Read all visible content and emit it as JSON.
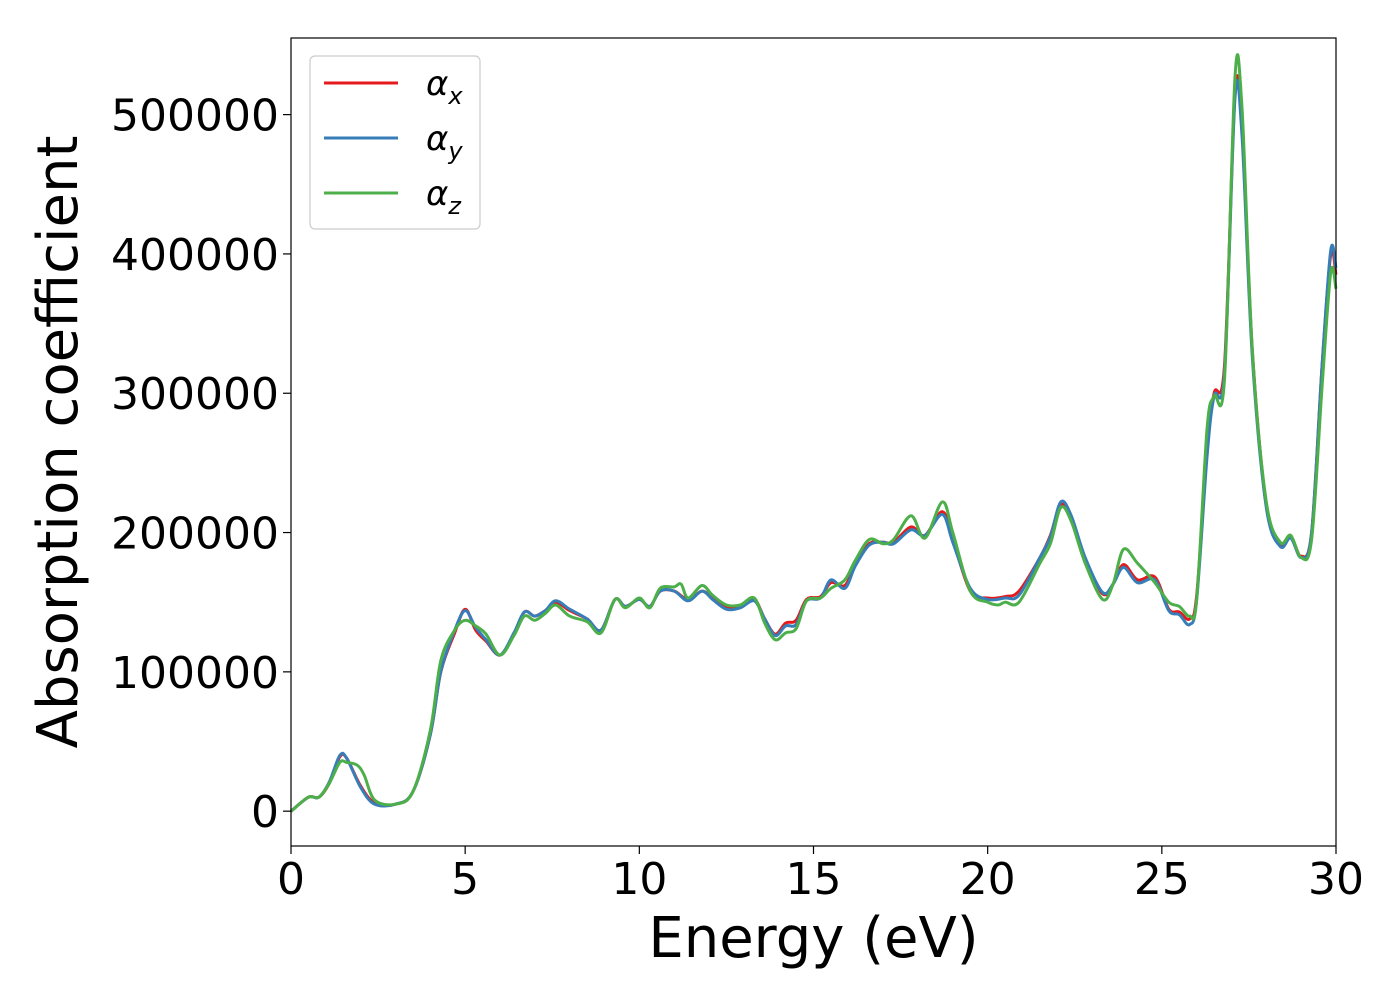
{
  "chart_data": {
    "type": "line",
    "title": "",
    "xlabel": "Energy (eV)",
    "ylabel": "Absorption coefficient",
    "xlim": [
      0,
      30
    ],
    "ylim": [
      -25000,
      555000
    ],
    "xticks": [
      0,
      5,
      10,
      15,
      20,
      25,
      30
    ],
    "yticks": [
      0,
      100000,
      200000,
      300000,
      400000,
      500000
    ],
    "grid": false,
    "legend_position": "top-left",
    "series": [
      {
        "name": "α",
        "sub": "x",
        "color": "#e41a1c",
        "points": [
          [
            0,
            0
          ],
          [
            0.5,
            10000
          ],
          [
            0.8,
            10000
          ],
          [
            1.1,
            20000
          ],
          [
            1.4,
            39000
          ],
          [
            1.6,
            38000
          ],
          [
            2.0,
            18000
          ],
          [
            2.4,
            6000
          ],
          [
            3.0,
            5000
          ],
          [
            3.5,
            14000
          ],
          [
            4.0,
            55000
          ],
          [
            4.3,
            100000
          ],
          [
            4.7,
            128000
          ],
          [
            5.0,
            145000
          ],
          [
            5.3,
            130000
          ],
          [
            5.6,
            122000
          ],
          [
            6.0,
            112000
          ],
          [
            6.4,
            127000
          ],
          [
            6.7,
            143000
          ],
          [
            7.0,
            140000
          ],
          [
            7.3,
            144000
          ],
          [
            7.6,
            150000
          ],
          [
            8.0,
            144000
          ],
          [
            8.5,
            138000
          ],
          [
            8.9,
            130000
          ],
          [
            9.3,
            152000
          ],
          [
            9.6,
            147000
          ],
          [
            10.0,
            152000
          ],
          [
            10.3,
            147000
          ],
          [
            10.6,
            158000
          ],
          [
            11.0,
            158000
          ],
          [
            11.4,
            152000
          ],
          [
            11.8,
            158000
          ],
          [
            12.1,
            153000
          ],
          [
            12.5,
            146000
          ],
          [
            12.9,
            147000
          ],
          [
            13.3,
            152000
          ],
          [
            13.6,
            138000
          ],
          [
            13.9,
            127000
          ],
          [
            14.2,
            135000
          ],
          [
            14.5,
            137000
          ],
          [
            14.8,
            152000
          ],
          [
            15.2,
            154000
          ],
          [
            15.5,
            164000
          ],
          [
            15.9,
            162000
          ],
          [
            16.2,
            177000
          ],
          [
            16.6,
            192000
          ],
          [
            17.0,
            193000
          ],
          [
            17.3,
            193000
          ],
          [
            17.8,
            204000
          ],
          [
            18.2,
            198000
          ],
          [
            18.7,
            215000
          ],
          [
            19.0,
            195000
          ],
          [
            19.5,
            158000
          ],
          [
            20.0,
            153000
          ],
          [
            20.5,
            154000
          ],
          [
            20.9,
            158000
          ],
          [
            21.5,
            182000
          ],
          [
            21.8,
            198000
          ],
          [
            22.1,
            220000
          ],
          [
            22.4,
            210000
          ],
          [
            22.8,
            180000
          ],
          [
            23.3,
            156000
          ],
          [
            23.6,
            163000
          ],
          [
            23.9,
            177000
          ],
          [
            24.3,
            166000
          ],
          [
            24.8,
            168000
          ],
          [
            25.2,
            145000
          ],
          [
            25.5,
            143000
          ],
          [
            25.8,
            138000
          ],
          [
            26.0,
            155000
          ],
          [
            26.3,
            260000
          ],
          [
            26.5,
            300000
          ],
          [
            26.8,
            320000
          ],
          [
            27.1,
            515000
          ],
          [
            27.3,
            490000
          ],
          [
            27.6,
            330000
          ],
          [
            28.0,
            220000
          ],
          [
            28.4,
            192000
          ],
          [
            28.7,
            197000
          ],
          [
            29.0,
            183000
          ],
          [
            29.3,
            200000
          ],
          [
            29.6,
            320000
          ],
          [
            29.85,
            400000
          ],
          [
            30.0,
            385000
          ]
        ]
      },
      {
        "name": "α",
        "sub": "y",
        "color": "#377eb8",
        "points": [
          [
            0,
            0
          ],
          [
            0.5,
            10000
          ],
          [
            0.8,
            10000
          ],
          [
            1.1,
            21000
          ],
          [
            1.4,
            40000
          ],
          [
            1.6,
            38000
          ],
          [
            2.0,
            17000
          ],
          [
            2.4,
            5000
          ],
          [
            3.0,
            5000
          ],
          [
            3.5,
            14000
          ],
          [
            4.0,
            55000
          ],
          [
            4.3,
            100000
          ],
          [
            4.7,
            130000
          ],
          [
            5.0,
            144000
          ],
          [
            5.3,
            132000
          ],
          [
            5.6,
            123000
          ],
          [
            6.0,
            112000
          ],
          [
            6.4,
            128000
          ],
          [
            6.7,
            143000
          ],
          [
            7.0,
            140000
          ],
          [
            7.3,
            144000
          ],
          [
            7.6,
            151000
          ],
          [
            8.0,
            145000
          ],
          [
            8.5,
            138000
          ],
          [
            8.9,
            130000
          ],
          [
            9.3,
            152000
          ],
          [
            9.6,
            147000
          ],
          [
            10.0,
            152000
          ],
          [
            10.3,
            147000
          ],
          [
            10.6,
            158000
          ],
          [
            11.0,
            158000
          ],
          [
            11.4,
            151000
          ],
          [
            11.8,
            158000
          ],
          [
            12.1,
            152000
          ],
          [
            12.5,
            145000
          ],
          [
            12.9,
            146000
          ],
          [
            13.3,
            151000
          ],
          [
            13.6,
            138000
          ],
          [
            13.9,
            126000
          ],
          [
            14.2,
            133000
          ],
          [
            14.5,
            134000
          ],
          [
            14.8,
            151000
          ],
          [
            15.2,
            153000
          ],
          [
            15.5,
            166000
          ],
          [
            15.9,
            160000
          ],
          [
            16.2,
            176000
          ],
          [
            16.6,
            191000
          ],
          [
            17.0,
            193000
          ],
          [
            17.3,
            192000
          ],
          [
            17.8,
            202000
          ],
          [
            18.2,
            198000
          ],
          [
            18.7,
            213000
          ],
          [
            19.0,
            193000
          ],
          [
            19.5,
            160000
          ],
          [
            20.0,
            152000
          ],
          [
            20.5,
            153000
          ],
          [
            20.9,
            155000
          ],
          [
            21.5,
            182000
          ],
          [
            21.8,
            197000
          ],
          [
            22.1,
            222000
          ],
          [
            22.4,
            212000
          ],
          [
            22.8,
            182000
          ],
          [
            23.3,
            157000
          ],
          [
            23.6,
            163000
          ],
          [
            23.9,
            175000
          ],
          [
            24.3,
            164000
          ],
          [
            24.8,
            166000
          ],
          [
            25.2,
            144000
          ],
          [
            25.5,
            141000
          ],
          [
            25.8,
            134000
          ],
          [
            26.0,
            152000
          ],
          [
            26.3,
            255000
          ],
          [
            26.5,
            298000
          ],
          [
            26.8,
            315000
          ],
          [
            27.1,
            512000
          ],
          [
            27.3,
            485000
          ],
          [
            27.6,
            325000
          ],
          [
            28.0,
            218000
          ],
          [
            28.4,
            190000
          ],
          [
            28.7,
            196000
          ],
          [
            29.0,
            182000
          ],
          [
            29.3,
            200000
          ],
          [
            29.6,
            320000
          ],
          [
            29.85,
            403000
          ],
          [
            30.0,
            390000
          ]
        ]
      },
      {
        "name": "α",
        "sub": "z",
        "color": "#4daf4a",
        "points": [
          [
            0,
            0
          ],
          [
            0.5,
            10000
          ],
          [
            0.8,
            10000
          ],
          [
            1.1,
            20000
          ],
          [
            1.4,
            35000
          ],
          [
            1.6,
            35000
          ],
          [
            1.9,
            33000
          ],
          [
            2.1,
            26000
          ],
          [
            2.4,
            8000
          ],
          [
            3.0,
            5000
          ],
          [
            3.5,
            14000
          ],
          [
            4.0,
            58000
          ],
          [
            4.3,
            108000
          ],
          [
            4.7,
            130000
          ],
          [
            5.0,
            137000
          ],
          [
            5.3,
            133000
          ],
          [
            5.6,
            127000
          ],
          [
            6.0,
            112000
          ],
          [
            6.4,
            126000
          ],
          [
            6.7,
            140000
          ],
          [
            7.0,
            137000
          ],
          [
            7.3,
            142000
          ],
          [
            7.6,
            148000
          ],
          [
            8.0,
            140000
          ],
          [
            8.5,
            136000
          ],
          [
            8.9,
            128000
          ],
          [
            9.3,
            152000
          ],
          [
            9.6,
            146000
          ],
          [
            10.0,
            153000
          ],
          [
            10.3,
            146000
          ],
          [
            10.6,
            160000
          ],
          [
            11.0,
            161000
          ],
          [
            11.2,
            163000
          ],
          [
            11.4,
            153000
          ],
          [
            11.8,
            162000
          ],
          [
            12.1,
            155000
          ],
          [
            12.5,
            148000
          ],
          [
            12.9,
            148000
          ],
          [
            13.3,
            153000
          ],
          [
            13.6,
            135000
          ],
          [
            13.9,
            123000
          ],
          [
            14.2,
            128000
          ],
          [
            14.5,
            131000
          ],
          [
            14.8,
            151000
          ],
          [
            15.2,
            153000
          ],
          [
            15.5,
            160000
          ],
          [
            15.9,
            166000
          ],
          [
            16.2,
            180000
          ],
          [
            16.6,
            195000
          ],
          [
            17.0,
            192000
          ],
          [
            17.3,
            195000
          ],
          [
            17.8,
            212000
          ],
          [
            18.2,
            196000
          ],
          [
            18.7,
            222000
          ],
          [
            19.0,
            200000
          ],
          [
            19.5,
            158000
          ],
          [
            20.0,
            150000
          ],
          [
            20.3,
            148000
          ],
          [
            20.5,
            150000
          ],
          [
            20.9,
            150000
          ],
          [
            21.5,
            178000
          ],
          [
            21.8,
            192000
          ],
          [
            22.1,
            218000
          ],
          [
            22.4,
            208000
          ],
          [
            22.8,
            178000
          ],
          [
            23.3,
            152000
          ],
          [
            23.6,
            163000
          ],
          [
            23.9,
            188000
          ],
          [
            24.3,
            178000
          ],
          [
            24.8,
            164000
          ],
          [
            25.2,
            150000
          ],
          [
            25.5,
            147000
          ],
          [
            25.8,
            140000
          ],
          [
            26.0,
            152000
          ],
          [
            26.3,
            275000
          ],
          [
            26.5,
            298000
          ],
          [
            26.8,
            310000
          ],
          [
            27.1,
            527000
          ],
          [
            27.3,
            505000
          ],
          [
            27.6,
            330000
          ],
          [
            28.0,
            222000
          ],
          [
            28.4,
            193000
          ],
          [
            28.7,
            198000
          ],
          [
            29.0,
            182000
          ],
          [
            29.3,
            195000
          ],
          [
            29.6,
            305000
          ],
          [
            29.85,
            387000
          ],
          [
            30.0,
            375000
          ]
        ]
      }
    ]
  }
}
